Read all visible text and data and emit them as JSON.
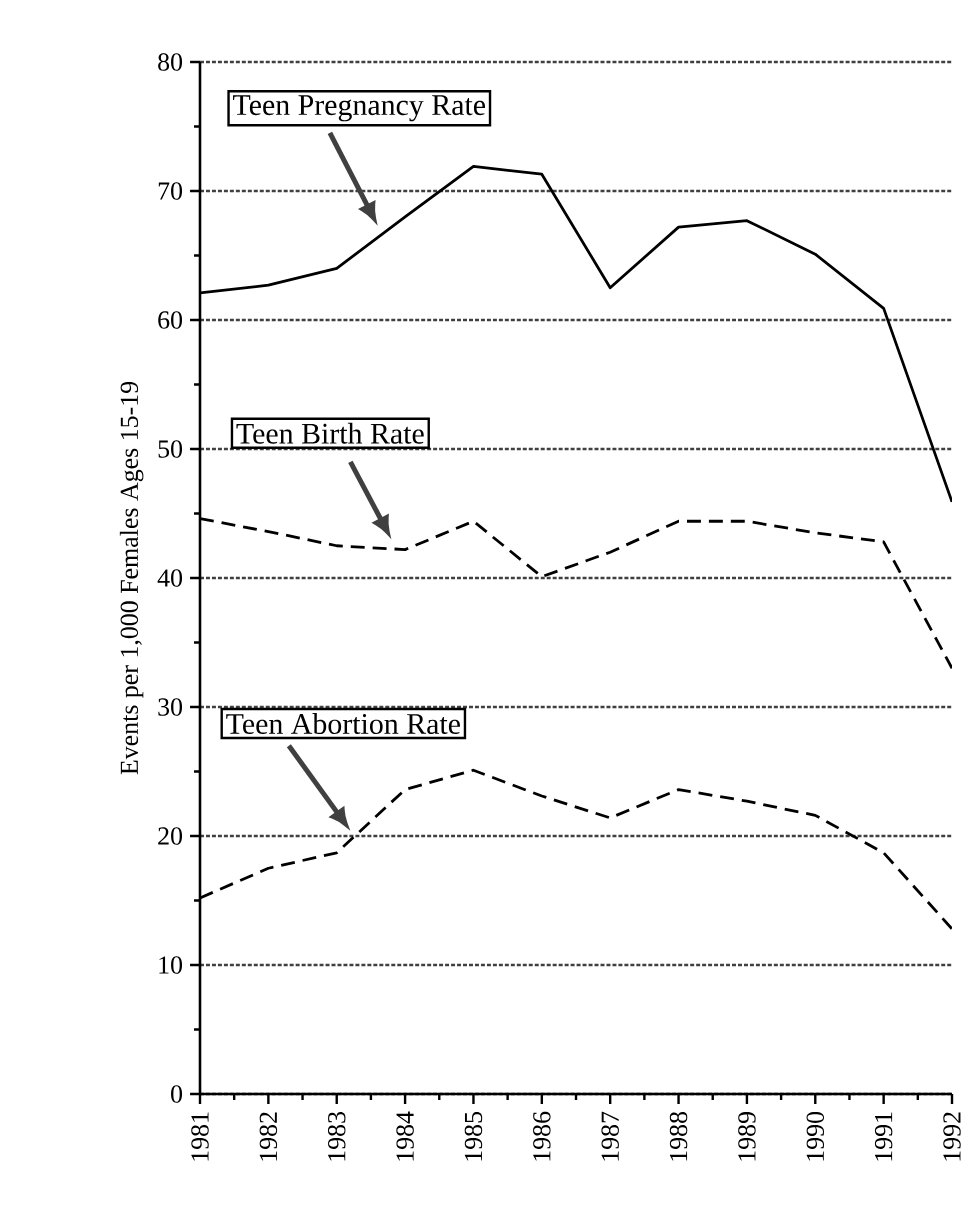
{
  "chart_data": {
    "type": "line",
    "ylabel": "Events per 1,000 Females Ages 15-19",
    "x": [
      1981,
      1982,
      1983,
      1984,
      1985,
      1986,
      1987,
      1988,
      1989,
      1990,
      1991,
      1992
    ],
    "series": [
      {
        "name": "Teen Pregnancy Rate",
        "color": "#000000",
        "line_style": "solid",
        "values": [
          62.1,
          62.7,
          64.0,
          68.0,
          71.9,
          71.3,
          62.5,
          67.2,
          67.7,
          65.1,
          60.9,
          45.9
        ]
      },
      {
        "name": "Teen Birth Rate",
        "color": "#000000",
        "line_style": "dashed",
        "values": [
          44.6,
          43.6,
          42.5,
          42.2,
          44.4,
          40.1,
          42.0,
          44.4,
          44.4,
          43.5,
          42.8,
          33.0
        ]
      },
      {
        "name": "Teen Abortion Rate",
        "color": "#000000",
        "line_style": "dashed",
        "values": [
          15.2,
          17.5,
          18.7,
          23.6,
          25.1,
          23.1,
          21.4,
          23.6,
          22.7,
          21.6,
          18.7,
          12.8
        ]
      }
    ],
    "xlim": [
      1981,
      1992
    ],
    "xticks": [
      1981,
      1982,
      1983,
      1984,
      1985,
      1986,
      1987,
      1988,
      1989,
      1990,
      1991,
      1992
    ],
    "ylim": [
      0,
      80
    ],
    "yticks": [
      0,
      10,
      20,
      30,
      40,
      50,
      60,
      70,
      80
    ],
    "grid": "y",
    "legend": false,
    "marker": "none"
  }
}
